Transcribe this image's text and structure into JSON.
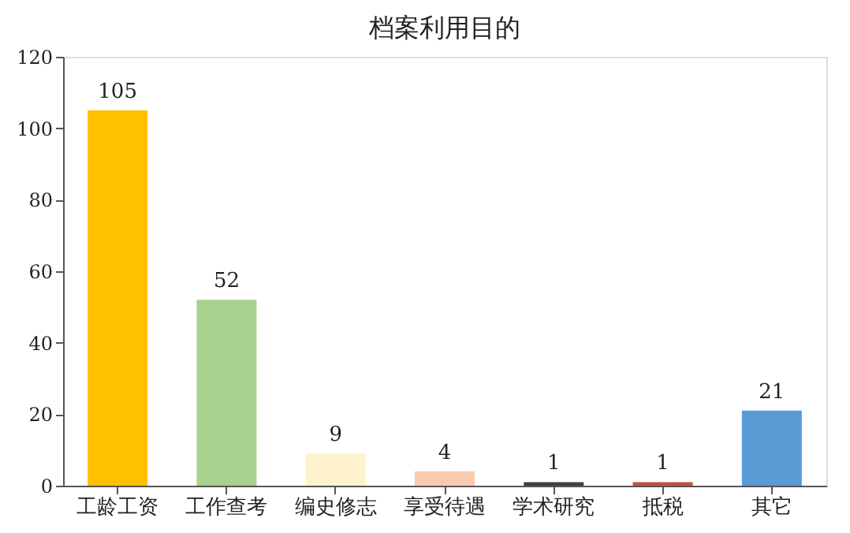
{
  "chart_data": {
    "type": "bar",
    "title": "档案利用目的",
    "categories": [
      "工龄工资",
      "工作查考",
      "编史修志",
      "享受待遇",
      "学术研究",
      "抵税",
      "其它"
    ],
    "values": [
      105,
      52,
      9,
      4,
      1,
      1,
      21
    ],
    "colors": [
      "#ffc000",
      "#a9d18e",
      "#fff2cc",
      "#f8cbad",
      "#404040",
      "#c0504d",
      "#5b9bd5"
    ],
    "ylim": [
      0,
      120
    ],
    "yticks": [
      0,
      20,
      40,
      60,
      80,
      100,
      120
    ],
    "grid": false,
    "data_labels": true
  }
}
